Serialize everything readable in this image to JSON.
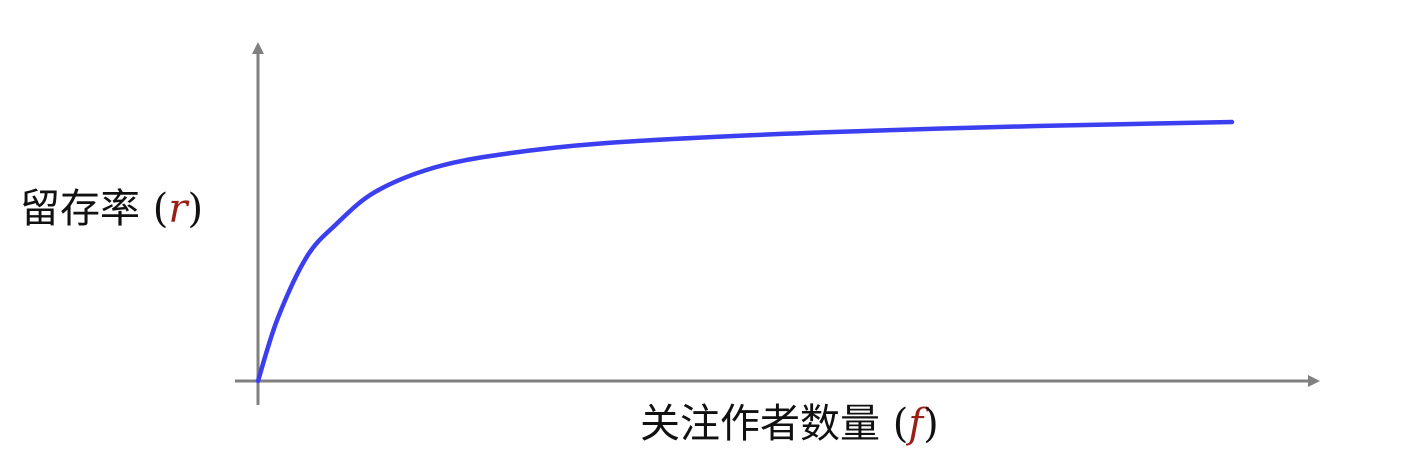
{
  "chart_data": {
    "type": "line",
    "title": "",
    "xlabel": {
      "text": "关注作者数量",
      "variable": "f"
    },
    "ylabel": {
      "text": "留存率",
      "variable": "r"
    },
    "grid": false,
    "legend": "none",
    "series": [
      {
        "color": "#3b3ff0",
        "x": [
          0,
          0.02,
          0.05,
          0.08,
          0.12,
          0.18,
          0.25,
          0.35,
          0.5,
          0.65,
          0.8,
          1.0
        ],
        "y": [
          0,
          0.23,
          0.46,
          0.58,
          0.7,
          0.79,
          0.84,
          0.88,
          0.91,
          0.93,
          0.945,
          0.96
        ]
      }
    ],
    "xlim": [
      0,
      1.1
    ],
    "ylim": [
      0,
      1.2
    ],
    "ticks": false
  },
  "colors": {
    "axis": "#808080",
    "line": "#3b3ff0",
    "variable": "#9a1f16",
    "text": "#111111"
  }
}
